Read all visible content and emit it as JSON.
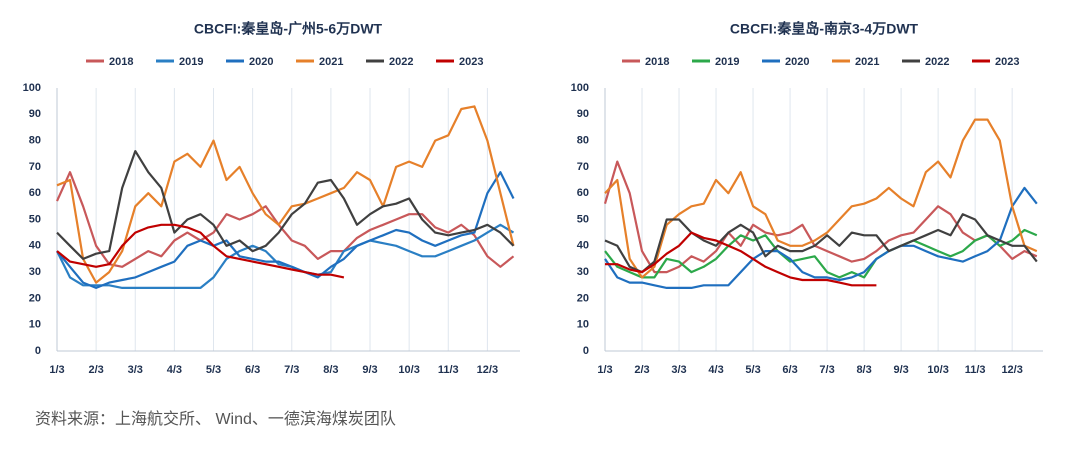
{
  "chart_data": [
    {
      "type": "line",
      "title": "CBCFI:秦皇岛-广州5-6万DWT",
      "categories": [
        "1/3",
        null,
        null,
        "2/3",
        null,
        null,
        "3/3",
        null,
        null,
        "4/3",
        null,
        null,
        "5/3",
        null,
        null,
        "6/3",
        null,
        null,
        "7/3",
        null,
        null,
        "8/3",
        null,
        null,
        "9/3",
        null,
        null,
        "10/3",
        null,
        null,
        "11/3",
        null,
        null,
        "12/3",
        null,
        null
      ],
      "ylim": [
        0,
        100
      ],
      "yticks": [
        0,
        10,
        20,
        30,
        40,
        50,
        60,
        70,
        80,
        90,
        100
      ],
      "grid": true,
      "series": [
        {
          "name": "2018",
          "color": "#c8585a",
          "values": [
            57,
            68,
            55,
            40,
            33,
            32,
            35,
            38,
            36,
            42,
            45,
            42,
            45,
            52,
            50,
            52,
            55,
            48,
            42,
            40,
            35,
            38,
            38,
            43,
            46,
            48,
            50,
            52,
            52,
            47,
            45,
            48,
            44,
            36,
            32,
            36
          ]
        },
        {
          "name": "2019",
          "color": "#2a7fc4",
          "values": [
            38,
            28,
            25,
            25,
            25,
            24,
            24,
            24,
            24,
            24,
            24,
            24,
            28,
            35,
            38,
            40,
            38,
            33,
            32,
            30,
            29,
            30,
            38,
            40,
            42,
            41,
            40,
            38,
            36,
            36,
            38,
            40,
            42,
            45,
            48,
            45
          ]
        },
        {
          "name": "2020",
          "color": "#1f6fbf",
          "values": [
            38,
            32,
            26,
            24,
            26,
            27,
            28,
            30,
            32,
            34,
            40,
            42,
            40,
            42,
            36,
            35,
            34,
            34,
            32,
            30,
            28,
            32,
            35,
            40,
            42,
            44,
            46,
            45,
            42,
            40,
            42,
            44,
            45,
            60,
            68,
            58
          ]
        },
        {
          "name": "2021",
          "color": "#e6802a",
          "values": [
            63,
            65,
            35,
            26,
            30,
            38,
            55,
            60,
            55,
            72,
            75,
            70,
            80,
            65,
            70,
            60,
            52,
            48,
            55,
            56,
            58,
            60,
            62,
            68,
            65,
            55,
            70,
            72,
            70,
            80,
            82,
            92,
            93,
            80,
            60,
            40
          ]
        },
        {
          "name": "2022",
          "color": "#404040",
          "values": [
            45,
            40,
            35,
            37,
            38,
            62,
            76,
            68,
            62,
            45,
            50,
            52,
            48,
            40,
            42,
            38,
            40,
            45,
            52,
            56,
            64,
            65,
            58,
            48,
            52,
            55,
            56,
            58,
            50,
            45,
            44,
            45,
            46,
            48,
            45,
            40
          ]
        },
        {
          "name": "2023",
          "color": "#c00000",
          "values": [
            38,
            34,
            33,
            32,
            33,
            40,
            45,
            47,
            48,
            48,
            47,
            45,
            40,
            36,
            35,
            34,
            33,
            32,
            31,
            30,
            29,
            29,
            28,
            null,
            null,
            null,
            null,
            null,
            null,
            null,
            null,
            null,
            null,
            null,
            null,
            null
          ]
        }
      ]
    },
    {
      "type": "line",
      "title": "CBCFI:秦皇岛-南京3-4万DWT",
      "categories": [
        "1/3",
        null,
        null,
        "2/3",
        null,
        null,
        "3/3",
        null,
        null,
        "4/3",
        null,
        null,
        "5/3",
        null,
        null,
        "6/3",
        null,
        null,
        "7/3",
        null,
        null,
        "8/3",
        null,
        null,
        "9/3",
        null,
        null,
        "10/3",
        null,
        null,
        "11/3",
        null,
        null,
        "12/3",
        null,
        null
      ],
      "ylim": [
        0,
        100
      ],
      "yticks": [
        0,
        10,
        20,
        30,
        40,
        50,
        60,
        70,
        80,
        90,
        100
      ],
      "grid": true,
      "series": [
        {
          "name": "2018",
          "color": "#c8585a",
          "values": [
            56,
            72,
            60,
            38,
            30,
            30,
            32,
            36,
            34,
            38,
            45,
            40,
            48,
            45,
            44,
            45,
            48,
            40,
            38,
            36,
            34,
            35,
            38,
            42,
            44,
            45,
            50,
            55,
            52,
            45,
            42,
            44,
            40,
            35,
            38,
            36
          ]
        },
        {
          "name": "2019",
          "color": "#2ca84a",
          "values": [
            38,
            32,
            30,
            28,
            28,
            35,
            34,
            30,
            32,
            35,
            40,
            44,
            42,
            44,
            38,
            34,
            35,
            36,
            30,
            28,
            30,
            28,
            35,
            38,
            40,
            42,
            40,
            38,
            36,
            38,
            42,
            44,
            40,
            42,
            46,
            44
          ]
        },
        {
          "name": "2020",
          "color": "#1f6fbf",
          "values": [
            35,
            28,
            26,
            26,
            25,
            24,
            24,
            24,
            25,
            25,
            25,
            30,
            35,
            38,
            38,
            35,
            30,
            28,
            28,
            27,
            28,
            30,
            35,
            38,
            40,
            40,
            38,
            36,
            35,
            34,
            36,
            38,
            42,
            55,
            62,
            56
          ]
        },
        {
          "name": "2021",
          "color": "#e6802a",
          "values": [
            60,
            65,
            35,
            28,
            32,
            48,
            52,
            55,
            56,
            65,
            60,
            68,
            55,
            52,
            42,
            40,
            40,
            42,
            45,
            50,
            55,
            56,
            58,
            62,
            58,
            55,
            68,
            72,
            66,
            80,
            88,
            88,
            80,
            55,
            40,
            38
          ]
        },
        {
          "name": "2022",
          "color": "#404040",
          "values": [
            42,
            40,
            32,
            30,
            34,
            50,
            50,
            45,
            42,
            40,
            45,
            48,
            45,
            36,
            40,
            38,
            38,
            40,
            44,
            40,
            45,
            44,
            44,
            38,
            40,
            42,
            44,
            46,
            44,
            52,
            50,
            44,
            42,
            40,
            40,
            34
          ]
        },
        {
          "name": "2023",
          "color": "#c00000",
          "values": [
            33,
            33,
            31,
            30,
            33,
            37,
            40,
            45,
            43,
            42,
            40,
            38,
            35,
            32,
            30,
            28,
            27,
            27,
            27,
            26,
            25,
            25,
            25,
            null,
            null,
            null,
            null,
            null,
            null,
            null,
            null,
            null,
            null,
            null,
            null,
            null
          ]
        }
      ]
    }
  ],
  "source": "资料来源：上海航交所、 Wind、一德滨海煤炭团队"
}
